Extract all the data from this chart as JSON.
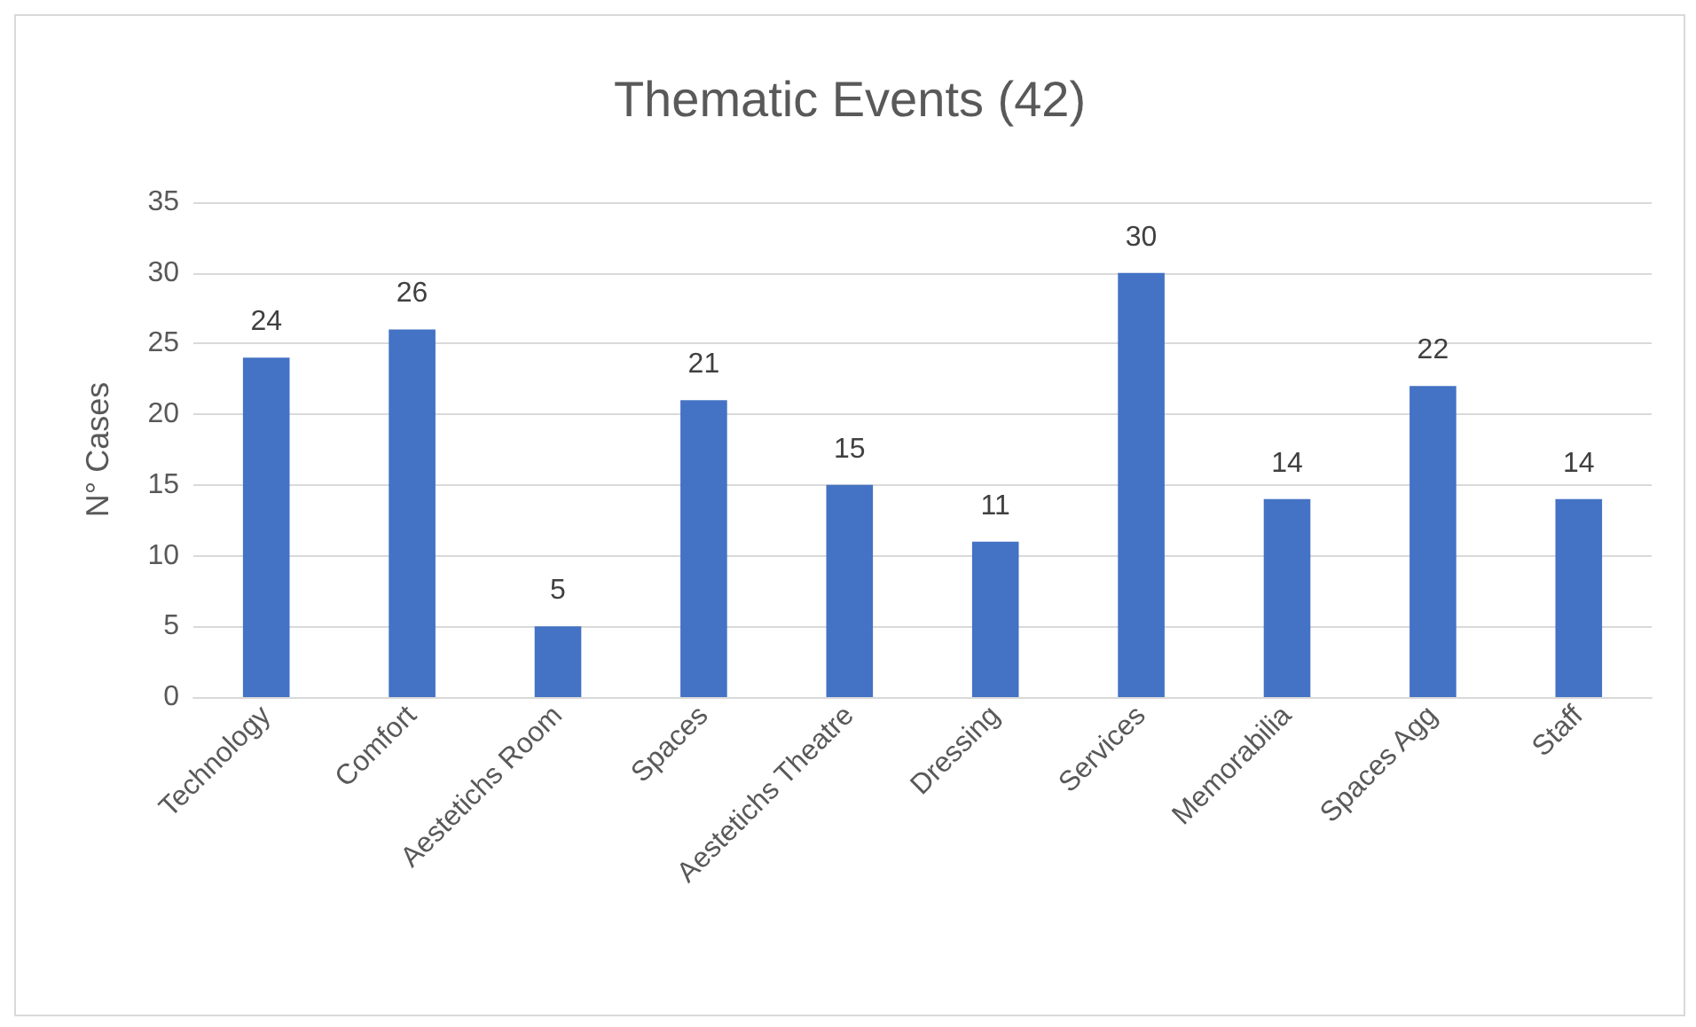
{
  "chart_data": {
    "type": "bar",
    "title": "Thematic Events (42)",
    "ylabel": "N° Cases",
    "categories": [
      "Technology",
      "Comfort",
      "Aestetichs Room",
      "Spaces",
      "Aestetichs Theatre",
      "Dressing",
      "Services",
      "Memorabilia",
      "Spaces Agg",
      "Staff"
    ],
    "values": [
      24,
      26,
      5,
      21,
      15,
      11,
      30,
      14,
      22,
      14
    ],
    "color": "#4472c4",
    "ylim": [
      0,
      35
    ],
    "yticks": [
      0,
      5,
      10,
      15,
      20,
      25,
      30,
      35
    ],
    "grid": "y",
    "data_labels": true
  }
}
